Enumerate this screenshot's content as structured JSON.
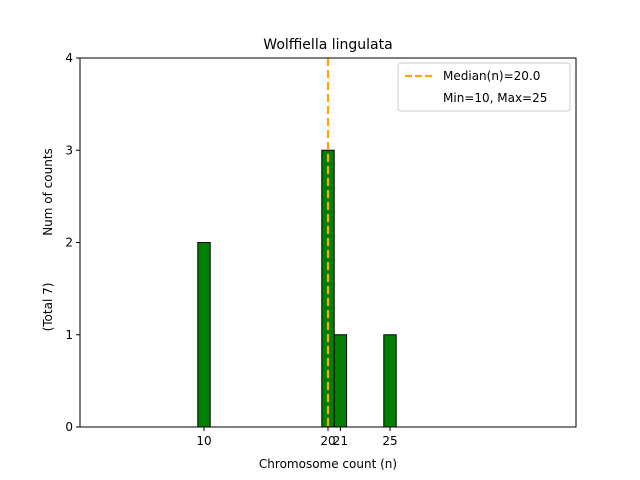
{
  "chart_data": {
    "type": "bar",
    "title": "Wolffiella lingulata",
    "xlabel": "Chromosome count (n)",
    "ylabel": "Num of counts",
    "ylabel2": "(Total 7)",
    "xlim": [
      0,
      40
    ],
    "ylim": [
      0,
      4
    ],
    "yticks": [
      0,
      1,
      2,
      3,
      4
    ],
    "xticks": [
      10,
      20,
      21,
      25
    ],
    "bar_width": 1,
    "bar_color": "#008000",
    "bar_edge": "#000000",
    "series": [
      {
        "x": [
          10,
          20,
          21,
          25
        ],
        "values": [
          2,
          3,
          1,
          1
        ]
      }
    ],
    "median": {
      "value": 20.0,
      "color": "#ffa500",
      "style": "dashed"
    },
    "legend": {
      "position": "top-right",
      "entries": [
        "Median(n)=20.0",
        "Min=10, Max=25"
      ]
    },
    "grid": false
  }
}
